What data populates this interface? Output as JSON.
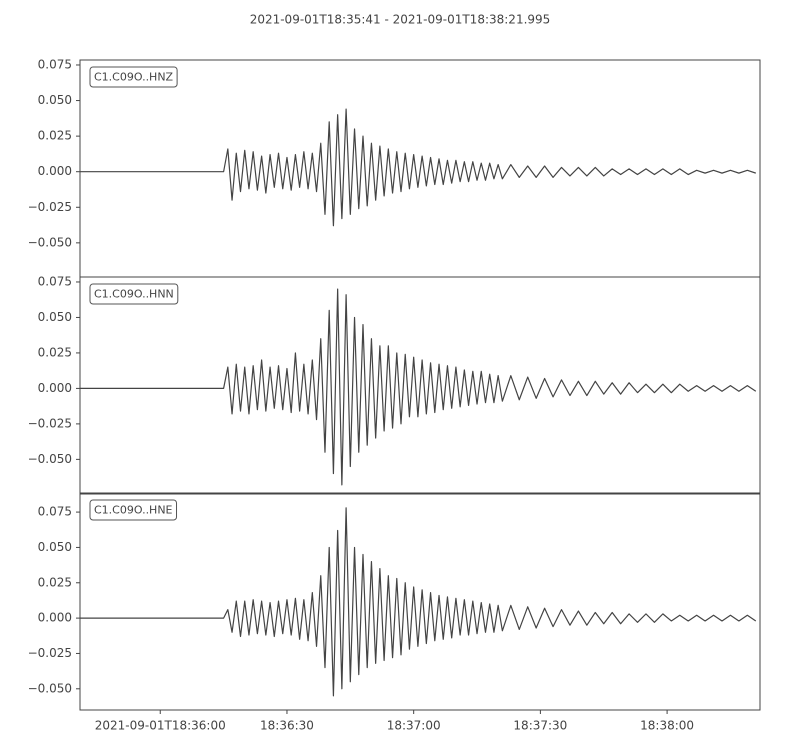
{
  "title": "2021-09-01T18:35:41  -  2021-09-01T18:38:21.995",
  "chart_data": [
    {
      "type": "line",
      "label": "C1.C09O..HNZ",
      "x": [
        0,
        34,
        35,
        36,
        37,
        38,
        39,
        40,
        41,
        42,
        43,
        44,
        45,
        46,
        47,
        48,
        49,
        50,
        51,
        52,
        53,
        54,
        55,
        56,
        57,
        58,
        59,
        60,
        61,
        62,
        63,
        64,
        65,
        66,
        67,
        68,
        69,
        70,
        71,
        72,
        73,
        74,
        75,
        76,
        77,
        78,
        79,
        80,
        81,
        82,
        83,
        84,
        85,
        86,
        87,
        88,
        89,
        90,
        91,
        92,
        93,
        94,
        95,
        96,
        97,
        98,
        99,
        100,
        102,
        104,
        106,
        108,
        110,
        112,
        114,
        116,
        118,
        120,
        122,
        124,
        126,
        128,
        130,
        132,
        134,
        136,
        138,
        140,
        142,
        144,
        146,
        148,
        150,
        152,
        154,
        156,
        158,
        160
      ],
      "series": [
        {
          "color": "#444444",
          "values": [
            0,
            0,
            0.016,
            -0.02,
            0.013,
            -0.014,
            0.015,
            -0.012,
            0.014,
            -0.013,
            0.011,
            -0.015,
            0.012,
            -0.011,
            0.013,
            -0.012,
            0.01,
            -0.013,
            0.012,
            -0.011,
            0.014,
            -0.012,
            0.013,
            -0.014,
            0.02,
            -0.03,
            0.035,
            -0.038,
            0.04,
            -0.033,
            0.044,
            -0.03,
            0.03,
            -0.026,
            0.025,
            -0.024,
            0.02,
            -0.02,
            0.018,
            -0.017,
            0.016,
            -0.015,
            0.014,
            -0.014,
            0.013,
            -0.012,
            0.012,
            -0.011,
            0.011,
            -0.01,
            0.01,
            -0.009,
            0.009,
            -0.009,
            0.008,
            -0.008,
            0.008,
            -0.007,
            0.007,
            -0.007,
            0.007,
            -0.006,
            0.006,
            -0.006,
            0.006,
            -0.005,
            0.005,
            -0.005,
            0.005,
            -0.004,
            0.004,
            -0.004,
            0.004,
            -0.004,
            0.003,
            -0.003,
            0.003,
            -0.003,
            0.003,
            -0.003,
            0.002,
            -0.002,
            0.002,
            -0.002,
            0.002,
            -0.002,
            0.002,
            -0.002,
            0.002,
            -0.002,
            0.001,
            -0.001,
            0.001,
            -0.001,
            0.001,
            -0.001,
            0.001,
            -0.001
          ]
        }
      ],
      "xlim": [
        0,
        160.995
      ],
      "ylim": [
        -0.074,
        0.0785
      ],
      "yticks": [
        0.075,
        {
          "value": 0.05,
          "label": "0.050"
        },
        0.025,
        {
          "value": 0,
          "label": "0.000"
        },
        {
          "value": -0.025,
          "label": "−0.025"
        },
        {
          "value": -0.05,
          "label": "−0.050"
        }
      ]
    },
    {
      "type": "line",
      "label": "C1.C09O..HNN",
      "x": [
        0,
        34,
        35,
        36,
        37,
        38,
        39,
        40,
        41,
        42,
        43,
        44,
        45,
        46,
        47,
        48,
        49,
        50,
        51,
        52,
        53,
        54,
        55,
        56,
        57,
        58,
        59,
        60,
        61,
        62,
        63,
        64,
        65,
        66,
        67,
        68,
        69,
        70,
        71,
        72,
        73,
        74,
        75,
        76,
        77,
        78,
        79,
        80,
        81,
        82,
        83,
        84,
        85,
        86,
        87,
        88,
        89,
        90,
        91,
        92,
        93,
        94,
        95,
        96,
        97,
        98,
        99,
        100,
        102,
        104,
        106,
        108,
        110,
        112,
        114,
        116,
        118,
        120,
        122,
        124,
        126,
        128,
        130,
        132,
        134,
        136,
        138,
        140,
        142,
        144,
        146,
        148,
        150,
        152,
        154,
        156,
        158,
        160
      ],
      "series": [
        {
          "color": "#444444",
          "values": [
            0,
            0,
            0.015,
            -0.018,
            0.017,
            -0.016,
            0.015,
            -0.018,
            0.016,
            -0.015,
            0.02,
            -0.016,
            0.015,
            -0.014,
            0.016,
            -0.015,
            0.014,
            -0.017,
            0.025,
            -0.016,
            0.017,
            -0.018,
            0.02,
            -0.022,
            0.035,
            -0.045,
            0.055,
            -0.06,
            0.07,
            -0.068,
            0.066,
            -0.055,
            0.05,
            -0.045,
            0.045,
            -0.04,
            0.035,
            -0.035,
            0.03,
            -0.03,
            0.03,
            -0.028,
            0.025,
            -0.025,
            0.024,
            -0.02,
            0.022,
            -0.02,
            0.02,
            -0.018,
            0.018,
            -0.017,
            0.017,
            -0.015,
            0.016,
            -0.014,
            0.015,
            -0.013,
            0.013,
            -0.012,
            0.012,
            -0.011,
            0.012,
            -0.01,
            0.01,
            -0.01,
            0.009,
            -0.009,
            0.009,
            -0.008,
            0.008,
            -0.007,
            0.007,
            -0.006,
            0.006,
            -0.005,
            0.005,
            -0.005,
            0.005,
            -0.004,
            0.004,
            -0.004,
            0.004,
            -0.003,
            0.003,
            -0.003,
            0.003,
            -0.003,
            0.003,
            -0.002,
            0.002,
            -0.002,
            0.002,
            -0.002,
            0.002,
            -0.002,
            0.002,
            -0.002
          ]
        }
      ],
      "xlim": [
        0,
        160.995
      ],
      "ylim": [
        -0.0744,
        0.0785
      ],
      "yticks": [
        0.075,
        {
          "value": 0.05,
          "label": "0.050"
        },
        0.025,
        {
          "value": 0,
          "label": "0.000"
        },
        {
          "value": -0.025,
          "label": "−0.025"
        },
        {
          "value": -0.05,
          "label": "−0.050"
        }
      ]
    },
    {
      "type": "line",
      "label": "C1.C09O..HNE",
      "x": [
        0,
        34,
        35,
        36,
        37,
        38,
        39,
        40,
        41,
        42,
        43,
        44,
        45,
        46,
        47,
        48,
        49,
        50,
        51,
        52,
        53,
        54,
        55,
        56,
        57,
        58,
        59,
        60,
        61,
        62,
        63,
        64,
        65,
        66,
        67,
        68,
        69,
        70,
        71,
        72,
        73,
        74,
        75,
        76,
        77,
        78,
        79,
        80,
        81,
        82,
        83,
        84,
        85,
        86,
        87,
        88,
        89,
        90,
        91,
        92,
        93,
        94,
        95,
        96,
        97,
        98,
        99,
        100,
        102,
        104,
        106,
        108,
        110,
        112,
        114,
        116,
        118,
        120,
        122,
        124,
        126,
        128,
        130,
        132,
        134,
        136,
        138,
        140,
        142,
        144,
        146,
        148,
        150,
        152,
        154,
        156,
        158,
        160
      ],
      "series": [
        {
          "color": "#444444",
          "values": [
            0,
            0,
            0.006,
            -0.01,
            0.012,
            -0.013,
            0.012,
            -0.012,
            0.013,
            -0.011,
            0.012,
            -0.012,
            0.011,
            -0.013,
            0.012,
            -0.011,
            0.013,
            -0.012,
            0.014,
            -0.015,
            0.013,
            -0.016,
            0.018,
            -0.02,
            0.03,
            -0.035,
            0.05,
            -0.055,
            0.062,
            -0.05,
            0.078,
            -0.045,
            0.05,
            -0.04,
            0.045,
            -0.035,
            0.04,
            -0.032,
            0.035,
            -0.03,
            0.03,
            -0.028,
            0.028,
            -0.026,
            0.025,
            -0.022,
            0.022,
            -0.02,
            0.02,
            -0.018,
            0.018,
            -0.016,
            0.016,
            -0.015,
            0.015,
            -0.014,
            0.014,
            -0.012,
            0.013,
            -0.012,
            0.012,
            -0.011,
            0.011,
            -0.01,
            0.01,
            -0.01,
            0.009,
            -0.009,
            0.009,
            -0.008,
            0.008,
            -0.007,
            0.007,
            -0.006,
            0.006,
            -0.005,
            0.005,
            -0.005,
            0.004,
            -0.004,
            0.004,
            -0.004,
            0.003,
            -0.003,
            0.003,
            -0.003,
            0.003,
            -0.002,
            0.002,
            -0.002,
            0.002,
            -0.002,
            0.002,
            -0.002,
            0.002,
            -0.002,
            0.002,
            -0.002
          ]
        }
      ],
      "xlim": [
        0,
        160.995
      ],
      "ylim": [
        -0.065,
        0.0885
      ],
      "yticks": [
        0.075,
        {
          "value": 0.05,
          "label": "0.050"
        },
        0.025,
        {
          "value": 0,
          "label": "0.000"
        },
        {
          "value": -0.025,
          "label": "−0.025"
        },
        {
          "value": -0.05,
          "label": "−0.050"
        }
      ],
      "xticks": [
        {
          "value": 19,
          "label": "2021-09-01T18:36:00"
        },
        {
          "value": 49,
          "label": "18:36:30"
        },
        {
          "value": 79,
          "label": "18:37:00"
        },
        {
          "value": 109,
          "label": "18:37:30"
        },
        {
          "value": 139,
          "label": "18:38:00"
        }
      ]
    }
  ]
}
